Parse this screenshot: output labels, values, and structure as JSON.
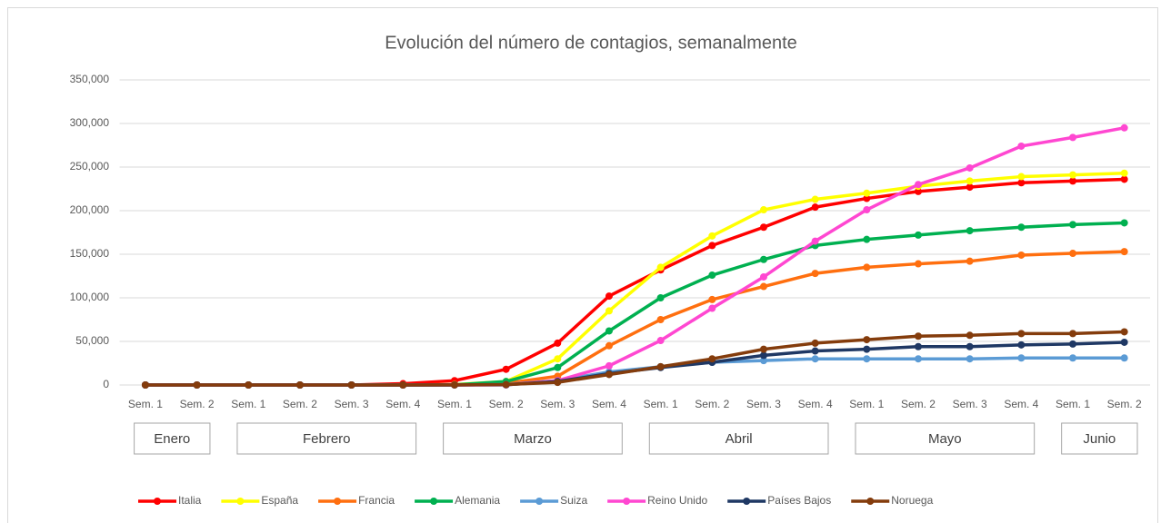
{
  "chart_data": {
    "type": "line",
    "title": "Evolución del número de contagios, semanalmente",
    "groups": [
      {
        "name": "Enero",
        "categories": [
          "Sem. 1",
          "Sem. 2"
        ]
      },
      {
        "name": "Febrero",
        "categories": [
          "Sem. 1",
          "Sem. 2",
          "Sem. 3",
          "Sem. 4"
        ]
      },
      {
        "name": "Marzo",
        "categories": [
          "Sem. 1",
          "Sem. 2",
          "Sem. 3",
          "Sem. 4"
        ]
      },
      {
        "name": "Abril",
        "categories": [
          "Sem. 1",
          "Sem. 2",
          "Sem. 3",
          "Sem. 4"
        ]
      },
      {
        "name": "Mayo",
        "categories": [
          "Sem. 1",
          "Sem. 2",
          "Sem. 3",
          "Sem. 4"
        ]
      },
      {
        "name": "Junio",
        "categories": [
          "Sem. 1",
          "Sem. 2"
        ]
      }
    ],
    "ylim": [
      0,
      350000
    ],
    "yticks": [
      0,
      {
        "value": 50000,
        "label": "50,000"
      },
      {
        "value": 100000,
        "label": "100,000"
      },
      {
        "value": 150000,
        "label": "150,000"
      },
      {
        "value": 200000,
        "label": "200,000"
      },
      {
        "value": 250000,
        "label": "250,000"
      },
      {
        "value": 300000,
        "label": "300,000"
      },
      {
        "value": 350000,
        "label": "350,000"
      }
    ],
    "grid": true,
    "legend": "bottom",
    "series": [
      {
        "name": "Italia",
        "color": "#ff0000",
        "values": [
          0,
          0,
          0,
          0,
          0,
          1500,
          5000,
          18000,
          48000,
          102000,
          132000,
          160000,
          181000,
          204000,
          214000,
          222000,
          227000,
          232000,
          234000,
          236000
        ]
      },
      {
        "name": "España",
        "color": "#ffff00",
        "values": [
          0,
          0,
          0,
          0,
          0,
          0,
          500,
          4000,
          30000,
          85000,
          135000,
          171000,
          201000,
          213000,
          220000,
          228000,
          234000,
          239000,
          241000,
          243000
        ]
      },
      {
        "name": "Francia",
        "color": "#ff6f0f",
        "values": [
          0,
          0,
          0,
          0,
          0,
          0,
          300,
          2000,
          10000,
          45000,
          75000,
          98000,
          113000,
          128000,
          135000,
          139000,
          142000,
          149000,
          151000,
          153000
        ]
      },
      {
        "name": "Alemania",
        "color": "#00b050",
        "values": [
          0,
          0,
          0,
          0,
          0,
          0,
          100,
          4000,
          20000,
          62000,
          100000,
          126000,
          144000,
          160000,
          167000,
          172000,
          177000,
          181000,
          184000,
          186000
        ]
      },
      {
        "name": "Suiza",
        "color": "#5b9bd5",
        "values": [
          0,
          0,
          0,
          0,
          0,
          0,
          100,
          500,
          5000,
          15000,
          21000,
          26000,
          28000,
          30000,
          30000,
          30000,
          30000,
          31000,
          31000,
          31000
        ]
      },
      {
        "name": "Reino Unido",
        "color": "#ff47d1",
        "values": [
          0,
          0,
          0,
          0,
          0,
          0,
          50,
          100,
          5000,
          22000,
          51000,
          88000,
          124000,
          165000,
          201000,
          230000,
          249000,
          274000,
          284000,
          295000
        ]
      },
      {
        "name": "Países Bajos",
        "color": "#1f3864",
        "values": [
          0,
          0,
          0,
          0,
          0,
          0,
          50,
          200,
          4000,
          13000,
          20000,
          26000,
          34000,
          39000,
          41000,
          44000,
          44000,
          46000,
          47000,
          49000
        ]
      },
      {
        "name": "Noruega",
        "color": "#843c0c",
        "values": [
          0,
          0,
          0,
          0,
          0,
          0,
          100,
          500,
          3000,
          12000,
          21000,
          30000,
          41000,
          48000,
          52000,
          56000,
          57000,
          59000,
          59000,
          61000
        ]
      }
    ]
  }
}
